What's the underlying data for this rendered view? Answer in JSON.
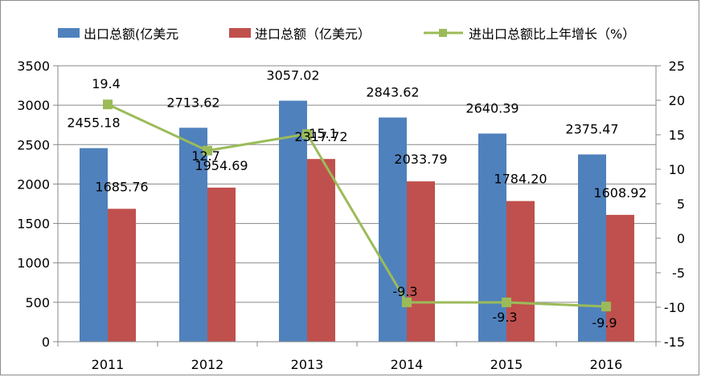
{
  "chart_data": {
    "type": "bar",
    "categories": [
      "2011",
      "2012",
      "2013",
      "2014",
      "2015",
      "2016"
    ],
    "series": [
      {
        "name": "出口总额(亿美元",
        "type": "bar",
        "axis": "left",
        "color": "#4f81bd",
        "values": [
          2455.18,
          2713.62,
          3057.02,
          2843.62,
          2640.39,
          2375.47
        ],
        "labels": [
          "2455.18",
          "2713.62",
          "3057.02",
          "2843.62",
          "2640.39",
          "2375.47"
        ]
      },
      {
        "name": "进口总额（亿美元）",
        "type": "bar",
        "axis": "left",
        "color": "#c0504d",
        "values": [
          1685.76,
          1954.69,
          2317.72,
          2033.79,
          1784.2,
          1608.92
        ],
        "labels": [
          "1685.76",
          "1954.69",
          "2317.72",
          "2033.79",
          "1784.20",
          "1608.92"
        ]
      },
      {
        "name": "进出口总额比上年增长（%）",
        "type": "line",
        "axis": "right",
        "color": "#9bbb59",
        "values": [
          19.4,
          12.7,
          15.1,
          -9.3,
          -9.3,
          -9.9
        ],
        "labels": [
          "19.4",
          "12.7",
          "15.1",
          "-9.3",
          "-9.3",
          "-9.9"
        ]
      }
    ],
    "ylim": [
      0,
      3500
    ],
    "y_ticks": [
      "0",
      "500",
      "1000",
      "1500",
      "2000",
      "2500",
      "3000",
      "3500"
    ],
    "y2lim": [
      -15,
      25
    ],
    "y2_ticks": [
      "-15",
      "-10",
      "-5",
      "0",
      "5",
      "10",
      "15",
      "20",
      "25"
    ],
    "grid": true,
    "legend": "top",
    "title": "",
    "xlabel": "",
    "ylabel": ""
  }
}
